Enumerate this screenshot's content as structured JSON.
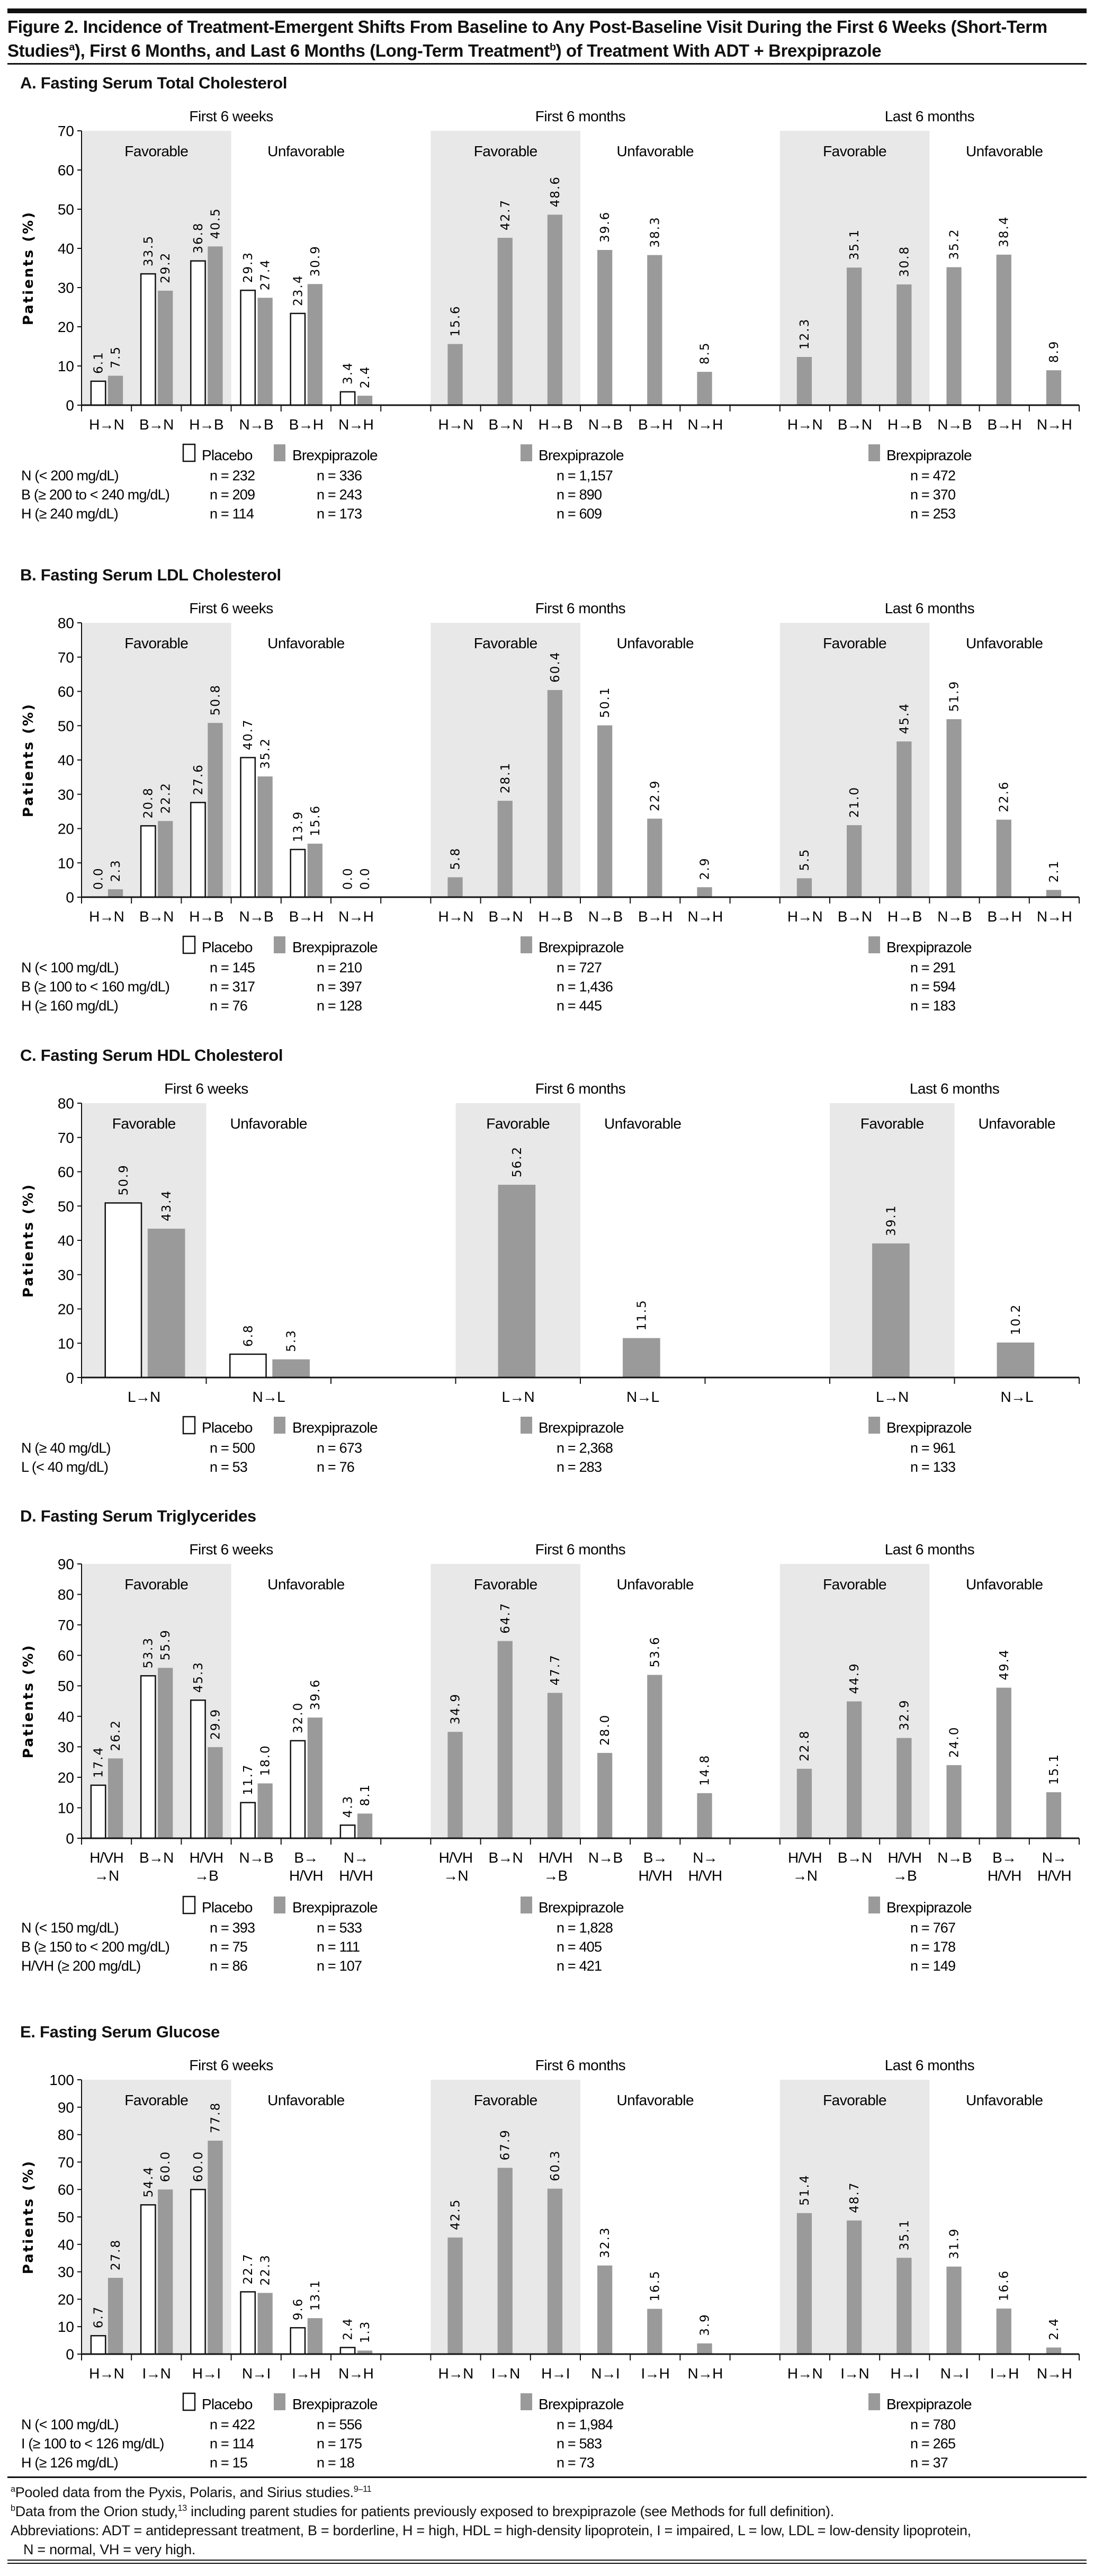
{
  "figure": {
    "title_line1": "Figure 2. Incidence of Treatment-Emergent Shifts From Baseline to Any Post-Baseline Visit During the First 6 Weeks (Short-Term",
    "title_line2_a": "Studies",
    "title_sup_a": "a",
    "title_line2_b": "), First 6 Months, and Last 6 Months (Long-Term Treatment",
    "title_sup_b": "b",
    "title_line2_c": ") of Treatment With ADT + Brexpiprazole"
  },
  "footnotes": {
    "a_marker": "a",
    "a_text": "Pooled data from the Pyxis, Polaris, and Sirius studies.",
    "a_ref": "9–11",
    "b_marker": "b",
    "b_text1": "Data from the Orion study,",
    "b_ref": "13",
    "b_text2": " including parent studies for patients previously exposed to brexpiprazole (see Methods for full definition).",
    "abbrev_line1": "Abbreviations: ADT = antidepressant treatment, B = borderline, H = high, HDL = high-density lipoprotein, I = impaired, L = low, LDL = low-density lipoprotein,",
    "abbrev_line2": "N = normal, VH = very high."
  },
  "chart_data": [
    {
      "type": "bar",
      "title": "A. Fasting Serum Total Cholesterol",
      "ylabel": "Patients (%)",
      "ylim": [
        0,
        70
      ],
      "ystep": 10,
      "groups": [
        "First 6 weeks",
        "First 6 months",
        "Last 6 months"
      ],
      "regions": [
        "Favorable",
        "Unfavorable"
      ],
      "categories": [
        "H→N",
        "B→N",
        "H→B",
        "N→B",
        "B→H",
        "N→H"
      ],
      "series": [
        {
          "name": "Placebo",
          "group": "First 6 weeks",
          "values": [
            6.1,
            33.5,
            36.8,
            29.3,
            23.4,
            3.4
          ]
        },
        {
          "name": "Brexpiprazole",
          "group": "First 6 weeks",
          "values": [
            7.5,
            29.2,
            40.5,
            27.4,
            30.9,
            2.4
          ]
        },
        {
          "name": "Brexpiprazole",
          "group": "First 6 months",
          "values": [
            15.6,
            42.7,
            48.6,
            39.6,
            38.3,
            8.5
          ]
        },
        {
          "name": "Brexpiprazole",
          "group": "Last 6 months",
          "values": [
            12.3,
            35.1,
            30.8,
            35.2,
            38.4,
            8.9
          ]
        }
      ],
      "n_rows": [
        {
          "label": "N (< 200 mg/dL)",
          "values": [
            "n = 232",
            "n = 336",
            "n = 1,157",
            "n = 472"
          ]
        },
        {
          "label": "B (≥ 200 to < 240 mg/dL)",
          "values": [
            "n = 209",
            "n = 243",
            "n = 890",
            "n = 370"
          ]
        },
        {
          "label": "H (≥ 240 mg/dL)",
          "values": [
            "n = 114",
            "n = 173",
            "n = 609",
            "n = 253"
          ]
        }
      ]
    },
    {
      "type": "bar",
      "title": "B. Fasting Serum LDL Cholesterol",
      "ylabel": "Patients (%)",
      "ylim": [
        0,
        80
      ],
      "ystep": 10,
      "groups": [
        "First 6 weeks",
        "First 6 months",
        "Last 6 months"
      ],
      "regions": [
        "Favorable",
        "Unfavorable"
      ],
      "categories": [
        "H→N",
        "B→N",
        "H→B",
        "N→B",
        "B→H",
        "N→H"
      ],
      "series": [
        {
          "name": "Placebo",
          "group": "First 6 weeks",
          "values": [
            0.0,
            20.8,
            27.6,
            40.7,
            13.9,
            0.0
          ]
        },
        {
          "name": "Brexpiprazole",
          "group": "First 6 weeks",
          "values": [
            2.3,
            22.2,
            50.8,
            35.2,
            15.6,
            0.0
          ]
        },
        {
          "name": "Brexpiprazole",
          "group": "First 6 months",
          "values": [
            5.8,
            28.1,
            60.4,
            50.1,
            22.9,
            2.9
          ]
        },
        {
          "name": "Brexpiprazole",
          "group": "Last 6 months",
          "values": [
            5.5,
            21.0,
            45.4,
            51.9,
            22.6,
            2.1
          ]
        }
      ],
      "n_rows": [
        {
          "label": "N (< 100 mg/dL)",
          "values": [
            "n = 145",
            "n = 210",
            "n = 727",
            "n = 291"
          ]
        },
        {
          "label": "B (≥ 100 to < 160 mg/dL)",
          "values": [
            "n = 317",
            "n = 397",
            "n = 1,436",
            "n = 594"
          ]
        },
        {
          "label": "H (≥ 160 mg/dL)",
          "values": [
            "n = 76",
            "n = 128",
            "n = 445",
            "n = 183"
          ]
        }
      ]
    },
    {
      "type": "bar",
      "title": "C. Fasting Serum HDL Cholesterol",
      "ylabel": "Patients (%)",
      "ylim": [
        0,
        80
      ],
      "ystep": 10,
      "groups": [
        "First 6 weeks",
        "First 6 months",
        "Last 6 months"
      ],
      "regions": [
        "Favorable",
        "Unfavorable"
      ],
      "categories": [
        "L→N",
        "N→L"
      ],
      "series": [
        {
          "name": "Placebo",
          "group": "First 6 weeks",
          "values": [
            50.9,
            6.8
          ]
        },
        {
          "name": "Brexpiprazole",
          "group": "First 6 weeks",
          "values": [
            43.4,
            5.3
          ]
        },
        {
          "name": "Brexpiprazole",
          "group": "First 6 months",
          "values": [
            56.2,
            11.5
          ]
        },
        {
          "name": "Brexpiprazole",
          "group": "Last 6 months",
          "values": [
            39.1,
            10.2
          ]
        }
      ],
      "n_rows": [
        {
          "label": "N (≥ 40 mg/dL)",
          "values": [
            "n = 500",
            "n = 673",
            "n = 2,368",
            "n = 961"
          ]
        },
        {
          "label": "L (< 40 mg/dL)",
          "values": [
            "n = 53",
            "n = 76",
            "n = 283",
            "n = 133"
          ]
        }
      ]
    },
    {
      "type": "bar",
      "title": "D. Fasting Serum Triglycerides",
      "ylabel": "Patients (%)",
      "ylim": [
        0,
        90
      ],
      "ystep": 10,
      "groups": [
        "First 6 weeks",
        "First 6 months",
        "Last 6 months"
      ],
      "regions": [
        "Favorable",
        "Unfavorable"
      ],
      "categories": [
        "H/VH\n→N",
        "B→N",
        "H/VH\n→B",
        "N→B",
        "B→\nH/VH",
        "N→\nH/VH"
      ],
      "series": [
        {
          "name": "Placebo",
          "group": "First 6 weeks",
          "values": [
            17.4,
            53.3,
            45.3,
            11.7,
            32.0,
            4.3
          ]
        },
        {
          "name": "Brexpiprazole",
          "group": "First 6 weeks",
          "values": [
            26.2,
            55.9,
            29.9,
            18.0,
            39.6,
            8.1
          ]
        },
        {
          "name": "Brexpiprazole",
          "group": "First 6 months",
          "values": [
            34.9,
            64.7,
            47.7,
            28.0,
            53.6,
            14.8
          ]
        },
        {
          "name": "Brexpiprazole",
          "group": "Last 6 months",
          "values": [
            22.8,
            44.9,
            32.9,
            24.0,
            49.4,
            15.1
          ]
        }
      ],
      "n_rows": [
        {
          "label": "N (< 150 mg/dL)",
          "values": [
            "n = 393",
            "n = 533",
            "n = 1,828",
            "n = 767"
          ]
        },
        {
          "label": "B (≥ 150 to < 200 mg/dL)",
          "values": [
            "n = 75",
            "n = 111",
            "n = 405",
            "n = 178"
          ]
        },
        {
          "label": "H/VH (≥ 200 mg/dL)",
          "values": [
            "n = 86",
            "n = 107",
            "n = 421",
            "n = 149"
          ]
        }
      ]
    },
    {
      "type": "bar",
      "title": "E. Fasting Serum Glucose",
      "ylabel": "Patients (%)",
      "ylim": [
        0,
        100
      ],
      "ystep": 10,
      "groups": [
        "First 6 weeks",
        "First 6 months",
        "Last 6 months"
      ],
      "regions": [
        "Favorable",
        "Unfavorable"
      ],
      "categories": [
        "H→N",
        "I→N",
        "H→I",
        "N→I",
        "I→H",
        "N→H"
      ],
      "series": [
        {
          "name": "Placebo",
          "group": "First 6 weeks",
          "values": [
            6.7,
            54.4,
            60.0,
            22.7,
            9.6,
            2.4
          ]
        },
        {
          "name": "Brexpiprazole",
          "group": "First 6 weeks",
          "values": [
            27.8,
            60.0,
            77.8,
            22.3,
            13.1,
            1.3
          ]
        },
        {
          "name": "Brexpiprazole",
          "group": "First 6 months",
          "values": [
            42.5,
            67.9,
            60.3,
            32.3,
            16.5,
            3.9
          ]
        },
        {
          "name": "Brexpiprazole",
          "group": "Last 6 months",
          "values": [
            51.4,
            48.7,
            35.1,
            31.9,
            16.6,
            2.4
          ]
        }
      ],
      "n_rows": [
        {
          "label": "N (< 100 mg/dL)",
          "values": [
            "n = 422",
            "n = 556",
            "n = 1,984",
            "n = 780"
          ]
        },
        {
          "label": "I (≥ 100 to < 126 mg/dL)",
          "values": [
            "n = 114",
            "n = 175",
            "n = 583",
            "n = 265"
          ]
        },
        {
          "label": "H (≥ 126 mg/dL)",
          "values": [
            "n = 15",
            "n = 18",
            "n = 73",
            "n = 37"
          ]
        }
      ]
    }
  ],
  "colors": {
    "brexpiprazole": "#9a9a9a",
    "placebo": "#ffffff",
    "favorable_shading": "#e8e8e8",
    "axis": "#111111"
  }
}
